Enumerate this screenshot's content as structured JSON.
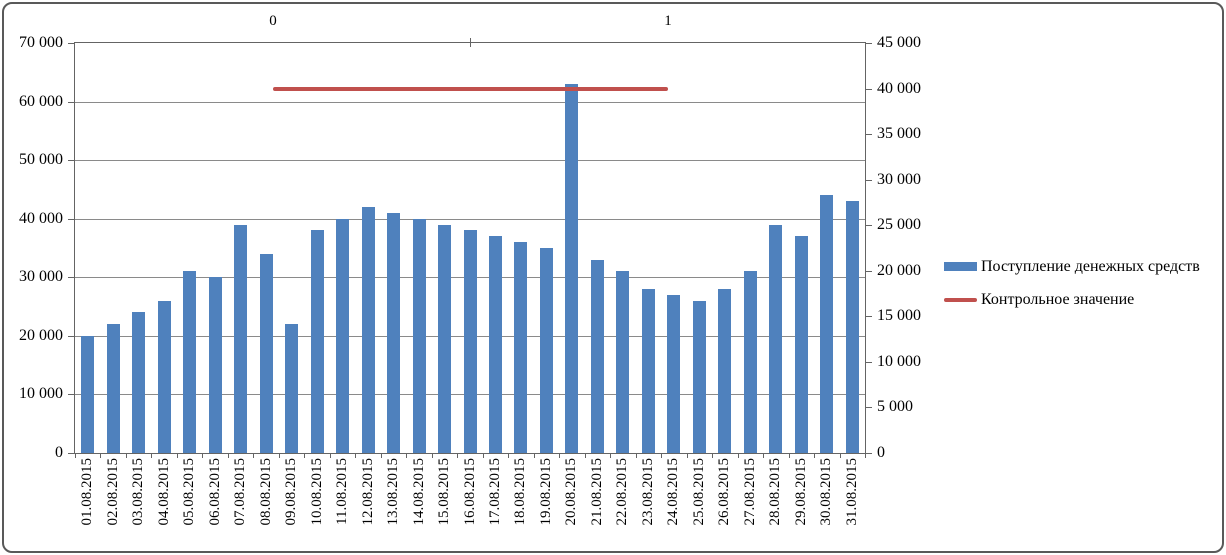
{
  "chart_data": {
    "type": "bar",
    "title": "",
    "categories": [
      "01.08.2015",
      "02.08.2015",
      "03.08.2015",
      "04.08.2015",
      "05.08.2015",
      "06.08.2015",
      "07.08.2015",
      "08.08.2015",
      "09.08.2015",
      "10.08.2015",
      "11.08.2015",
      "12.08.2015",
      "13.08.2015",
      "14.08.2015",
      "15.08.2015",
      "16.08.2015",
      "17.08.2015",
      "18.08.2015",
      "19.08.2015",
      "20.08.2015",
      "21.08.2015",
      "22.08.2015",
      "23.08.2015",
      "24.08.2015",
      "25.08.2015",
      "26.08.2015",
      "27.08.2015",
      "28.08.2015",
      "29.08.2015",
      "30.08.2015",
      "31.08.2015"
    ],
    "series": [
      {
        "name": "Поступление денежных средств",
        "type": "bar",
        "axis": "left",
        "color": "#4F81BD",
        "values": [
          20000,
          22000,
          24000,
          26000,
          31000,
          30000,
          39000,
          34000,
          22000,
          38000,
          40000,
          42000,
          41000,
          40000,
          39000,
          38000,
          37000,
          36000,
          35000,
          63000,
          33000,
          31000,
          28000,
          27000,
          26000,
          28000,
          31000,
          39000,
          37000,
          44000,
          43000
        ]
      },
      {
        "name": "Контрольное значение",
        "type": "line",
        "axis": "right",
        "color": "#C0504D",
        "categories": [
          "0",
          "1"
        ],
        "values": [
          40000,
          40000
        ]
      }
    ],
    "axes": {
      "left": {
        "min": 0,
        "max": 70000,
        "step": 10000,
        "tick_labels": [
          "0",
          "10 000",
          "20 000",
          "30 000",
          "40 000",
          "50 000",
          "60 000",
          "70 000"
        ]
      },
      "right": {
        "min": 0,
        "max": 45000,
        "step": 5000,
        "tick_labels": [
          "0",
          "5 000",
          "10 000",
          "15 000",
          "20 000",
          "25 000",
          "30 000",
          "35 000",
          "40 000",
          "45 000"
        ]
      },
      "top": {
        "tick_labels": [
          "0",
          "1"
        ]
      },
      "bottom": {
        "label_rotation": -90
      }
    },
    "legend": {
      "position": "right",
      "entries": [
        "Поступление денежных средств",
        "Контрольное значение"
      ]
    },
    "grid": true,
    "colors": {
      "bar": "#4F81BD",
      "control_line": "#C0504D",
      "gridline": "#8A8A8A",
      "axis": "#646464",
      "frame_border": "#595959",
      "text": "#000000"
    }
  }
}
